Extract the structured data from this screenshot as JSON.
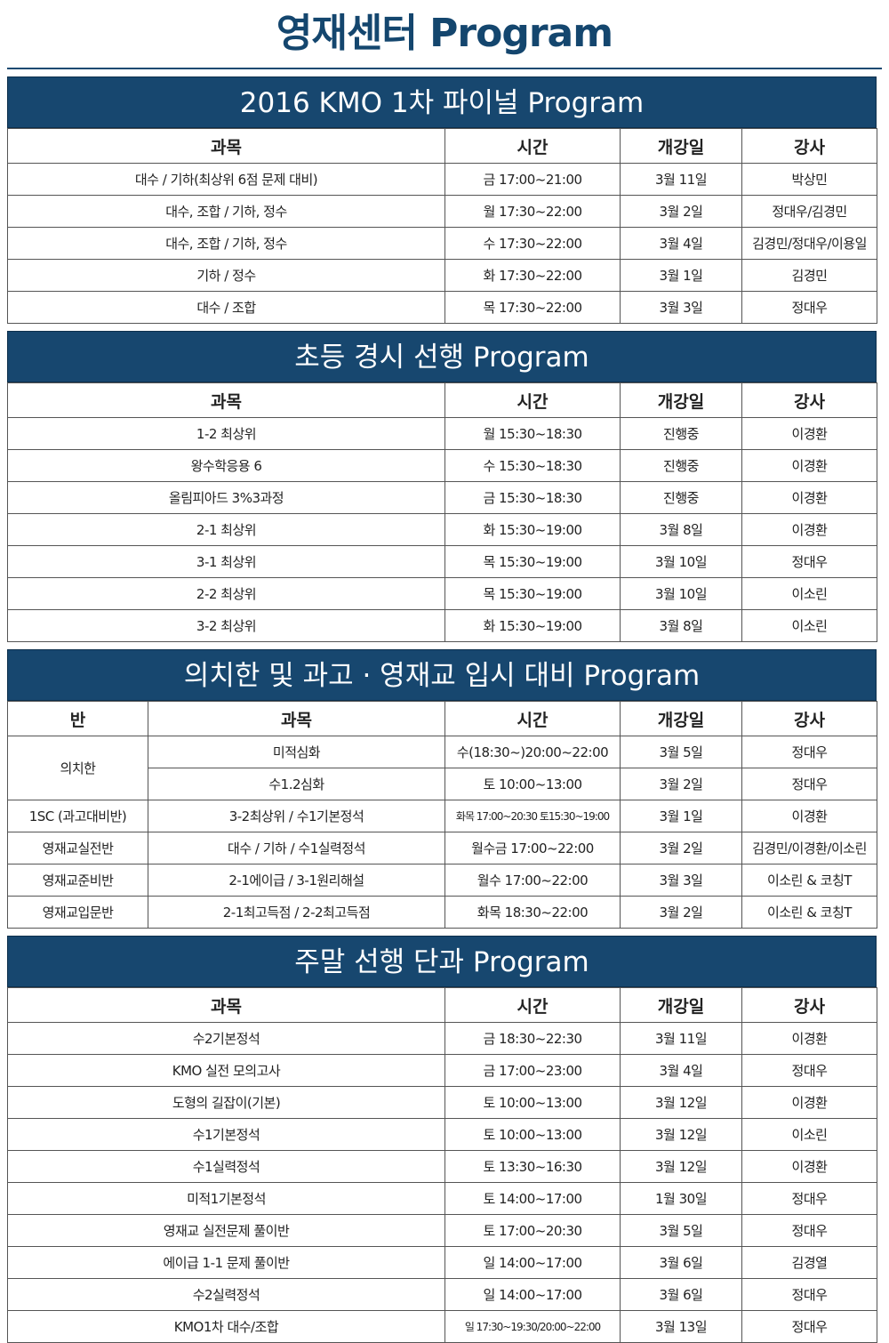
{
  "title": "영재센터 Program",
  "sections": [
    {
      "title": "2016 KMO 1차 파이널 Program",
      "headers": [
        "과목",
        "시간",
        "개강일",
        "강사"
      ],
      "rows": [
        [
          "대수 / 기하(최상위 6점 문제 대비)",
          "금 17:00~21:00",
          "3월 11일",
          "박상민"
        ],
        [
          "대수, 조합 / 기하, 정수",
          "월 17:30~22:00",
          "3월 2일",
          "정대우/김경민"
        ],
        [
          "대수, 조합 / 기하, 정수",
          "수 17:30~22:00",
          "3월 4일",
          "김경민/정대우/이용일"
        ],
        [
          "기하 / 정수",
          "화 17:30~22:00",
          "3월 1일",
          "김경민"
        ],
        [
          "대수 / 조합",
          "목 17:30~22:00",
          "3월 3일",
          "정대우"
        ]
      ]
    },
    {
      "title": "초등 경시 선행 Program",
      "headers": [
        "과목",
        "시간",
        "개강일",
        "강사"
      ],
      "rows": [
        [
          "1-2 최상위",
          "월 15:30~18:30",
          "진행중",
          "이경환"
        ],
        [
          "왕수학응용 6",
          "수 15:30~18:30",
          "진행중",
          "이경환"
        ],
        [
          "올림피아드 3%3과정",
          "금 15:30~18:30",
          "진행중",
          "이경환"
        ],
        [
          "2-1 최상위",
          "화 15:30~19:00",
          "3월 8일",
          "이경환"
        ],
        [
          "3-1 최상위",
          "목 15:30~19:00",
          "3월 10일",
          "정대우"
        ],
        [
          "2-2 최상위",
          "목 15:30~19:00",
          "3월 10일",
          "이소린"
        ],
        [
          "3-2 최상위",
          "화 15:30~19:00",
          "3월 8일",
          "이소린"
        ]
      ]
    },
    {
      "title": "의치한 및 과고 · 영재교 입시 대비 Program",
      "headers": [
        "반",
        "과목",
        "시간",
        "개강일",
        "강사"
      ],
      "rows": [
        [
          "의치한",
          "미적심화",
          "수(18:30~)20:00~22:00",
          "3월 5일",
          "정대우"
        ],
        [
          "수1.2심화",
          "토 10:00~13:00",
          "3월 2일",
          "정대우"
        ],
        [
          "1SC (과고대비반)",
          "3-2최상위 / 수1기본정석",
          "화목 17:00~20:30 토15:30~19:00",
          "3월 1일",
          "이경환"
        ],
        [
          "영재교실전반",
          "대수 / 기하 / 수1실력정석",
          "월수금 17:00~22:00",
          "3월 2일",
          "김경민/이경환/이소린"
        ],
        [
          "영재교준비반",
          "2-1에이급 / 3-1원리해설",
          "월수 17:00~22:00",
          "3월 3일",
          "이소린 & 코칭T"
        ],
        [
          "영재교입문반",
          "2-1최고득점 / 2-2최고득점",
          "화목 18:30~22:00",
          "3월 2일",
          "이소린 & 코칭T"
        ]
      ]
    },
    {
      "title": "주말 선행 단과 Program",
      "headers": [
        "과목",
        "시간",
        "개강일",
        "강사"
      ],
      "rows": [
        [
          "수2기본정석",
          "금 18:30~22:30",
          "3월 11일",
          "이경환"
        ],
        [
          "KMO 실전 모의고사",
          "금 17:00~23:00",
          "3월 4일",
          "정대우"
        ],
        [
          "도형의 길잡이(기본)",
          "토 10:00~13:00",
          "3월 12일",
          "이경환"
        ],
        [
          "수1기본정석",
          "토 10:00~13:00",
          "3월 12일",
          "이소린"
        ],
        [
          "수1실력정석",
          "토 13:30~16:30",
          "3월 12일",
          "이경환"
        ],
        [
          "미적1기본정석",
          "토 14:00~17:00",
          "1월 30일",
          "정대우"
        ],
        [
          "영재교 실전문제 풀이반",
          "토 17:00~20:30",
          "3월 5일",
          "정대우"
        ],
        [
          "에이급 1-1 문제 풀이반",
          "일 14:00~17:00",
          "3월 6일",
          "김경열"
        ],
        [
          "수2실력정석",
          "일 14:00~17:00",
          "3월 6일",
          "정대우"
        ],
        [
          "KMO1차 대수/조합",
          "일 17:30~19:30/20:00~22:00",
          "3월 13일",
          "정대우"
        ]
      ]
    }
  ]
}
